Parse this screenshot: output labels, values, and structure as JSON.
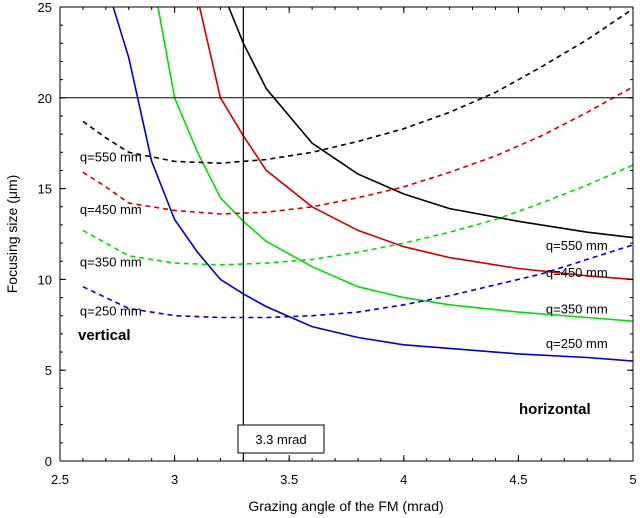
{
  "chart_data": {
    "type": "line",
    "title": "",
    "xlabel": "Grazing angle of the FM (mrad)",
    "ylabel": "Focusing size (μm)",
    "xlim": [
      2.5,
      5
    ],
    "ylim": [
      0,
      25
    ],
    "xticks": [
      "2.5",
      "3",
      "3.5",
      "4",
      "4.5",
      "5"
    ],
    "yticks": [
      "0",
      "5",
      "10",
      "15",
      "20",
      "25"
    ],
    "grid": false,
    "hline": 20,
    "vline": 3.3,
    "vline_label": "3.3 mrad",
    "labels": {
      "vertical": "vertical",
      "horizontal": "horizontal"
    },
    "series": [
      {
        "name": "q=250 mm",
        "group": "horizontal",
        "style": "solid",
        "color": "#0000cc",
        "x": [
          2.72,
          2.8,
          2.9,
          3.0,
          3.1,
          3.2,
          3.3,
          3.4,
          3.6,
          3.8,
          4.0,
          4.2,
          4.5,
          4.8,
          5.0
        ],
        "y": [
          25.5,
          22.2,
          16.5,
          13.3,
          11.5,
          10.0,
          9.2,
          8.5,
          7.4,
          6.8,
          6.4,
          6.2,
          5.9,
          5.7,
          5.5
        ]
      },
      {
        "name": "q=350 mm",
        "group": "horizontal",
        "style": "solid",
        "color": "#00dd00",
        "x": [
          2.92,
          3.0,
          3.1,
          3.2,
          3.3,
          3.4,
          3.6,
          3.8,
          4.0,
          4.2,
          4.5,
          4.8,
          5.0
        ],
        "y": [
          25.5,
          20.0,
          17.0,
          14.5,
          13.2,
          12.1,
          10.7,
          9.6,
          9.0,
          8.6,
          8.2,
          7.9,
          7.7
        ]
      },
      {
        "name": "q=450 mm",
        "group": "horizontal",
        "style": "solid",
        "color": "#cc0000",
        "x": [
          3.1,
          3.2,
          3.3,
          3.4,
          3.6,
          3.8,
          4.0,
          4.2,
          4.5,
          4.8,
          5.0
        ],
        "y": [
          25.5,
          20.0,
          17.9,
          16.0,
          14.0,
          12.7,
          11.8,
          11.2,
          10.6,
          10.2,
          10.0
        ]
      },
      {
        "name": "q=550 mm",
        "group": "horizontal",
        "style": "solid",
        "color": "#000000",
        "x": [
          3.22,
          3.3,
          3.4,
          3.6,
          3.8,
          4.0,
          4.2,
          4.5,
          4.8,
          5.0
        ],
        "y": [
          25.5,
          23.0,
          20.5,
          17.5,
          15.8,
          14.7,
          13.9,
          13.2,
          12.6,
          12.3
        ]
      },
      {
        "name": "q=250 mm",
        "group": "vertical",
        "style": "dashed",
        "color": "#0000cc",
        "x": [
          2.6,
          2.7,
          2.8,
          3.0,
          3.2,
          3.4,
          3.6,
          3.8,
          4.0,
          4.2,
          4.4,
          4.6,
          4.8,
          5.0
        ],
        "y": [
          9.6,
          9.0,
          8.4,
          8.0,
          7.9,
          7.9,
          8.0,
          8.2,
          8.6,
          9.1,
          9.7,
          10.3,
          11.1,
          11.9
        ]
      },
      {
        "name": "q=350 mm",
        "group": "vertical",
        "style": "dashed",
        "color": "#00dd00",
        "x": [
          2.6,
          2.7,
          2.8,
          3.0,
          3.2,
          3.4,
          3.6,
          3.8,
          4.0,
          4.2,
          4.4,
          4.6,
          4.8,
          5.0
        ],
        "y": [
          12.7,
          12.0,
          11.3,
          10.9,
          10.8,
          10.9,
          11.1,
          11.5,
          12.0,
          12.6,
          13.3,
          14.2,
          15.2,
          16.3
        ]
      },
      {
        "name": "q=450 mm",
        "group": "vertical",
        "style": "dashed",
        "color": "#cc0000",
        "x": [
          2.6,
          2.7,
          2.8,
          3.0,
          3.2,
          3.4,
          3.6,
          3.8,
          4.0,
          4.2,
          4.4,
          4.6,
          4.8,
          5.0
        ],
        "y": [
          15.9,
          15.1,
          14.2,
          13.8,
          13.6,
          13.7,
          14.0,
          14.5,
          15.1,
          15.9,
          16.8,
          17.9,
          19.2,
          20.6
        ]
      },
      {
        "name": "q=550 mm",
        "group": "vertical",
        "style": "dashed",
        "color": "#000000",
        "x": [
          2.6,
          2.7,
          2.8,
          3.0,
          3.2,
          3.4,
          3.6,
          3.8,
          4.0,
          4.2,
          4.4,
          4.6,
          4.8,
          5.0
        ],
        "y": [
          18.7,
          17.8,
          17.0,
          16.5,
          16.4,
          16.6,
          17.0,
          17.6,
          18.3,
          19.2,
          20.3,
          21.7,
          23.2,
          24.9
        ]
      }
    ],
    "vertical_labels": [
      "q=550 mm",
      "q=450 mm",
      "q=350 mm",
      "q=250 mm"
    ],
    "horizontal_labels": [
      "q=550 mm",
      "q=450 mm",
      "q=350 mm",
      "q=250 mm"
    ]
  }
}
